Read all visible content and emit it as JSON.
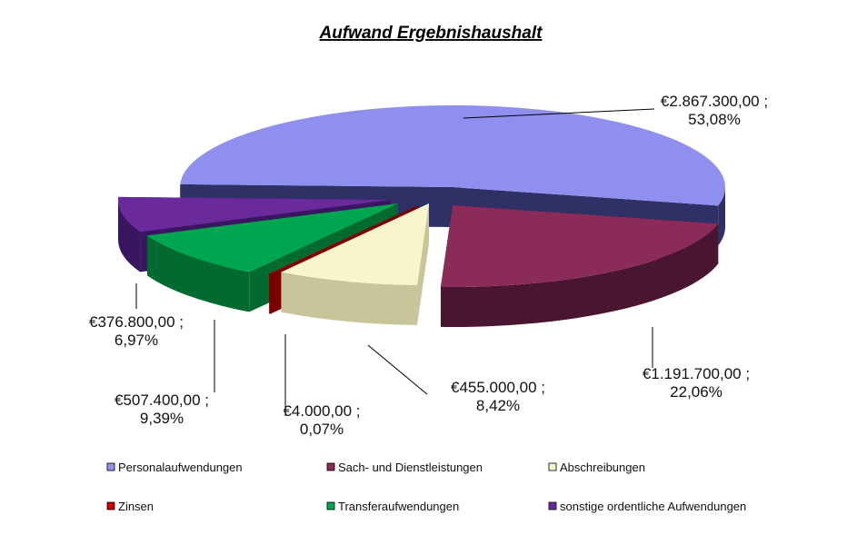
{
  "chart_data": {
    "type": "pie",
    "style": "3d-exploded",
    "title": "Aufwand  Ergebnishaushalt",
    "slices": [
      {
        "name": "Personalaufwendungen",
        "value": 2867300.0,
        "value_label": "€2.867.300,00 ;",
        "percent_label": "53,08%",
        "color": "#8f8fef",
        "side_color": "#2e3066"
      },
      {
        "name": "Sach- und Dienstleistungen",
        "value": 1191700.0,
        "value_label": "€1.191.700,00 ;",
        "percent_label": "22,06%",
        "color": "#8b2b5a",
        "side_color": "#4a1530"
      },
      {
        "name": "Abschreibungen",
        "value": 455000.0,
        "value_label": "€455.000,00 ;",
        "percent_label": "8,42%",
        "color": "#f8f5cc",
        "side_color": "#c8c59a"
      },
      {
        "name": "Zinsen",
        "value": 4000.0,
        "value_label": "€4.000,00 ;",
        "percent_label": "0,07%",
        "color": "#cc0000",
        "side_color": "#7a0000"
      },
      {
        "name": "Transferaufwendungen",
        "value": 507400.0,
        "value_label": "€507.400,00 ;",
        "percent_label": "9,39%",
        "color": "#00a64f",
        "side_color": "#006a30"
      },
      {
        "name": "sonstige ordentliche Aufwendungen",
        "value": 376800.0,
        "value_label": "€376.800,00 ;",
        "percent_label": "6,97%",
        "color": "#6a2a9c",
        "side_color": "#3a1660"
      }
    ],
    "legend_position": "bottom"
  }
}
